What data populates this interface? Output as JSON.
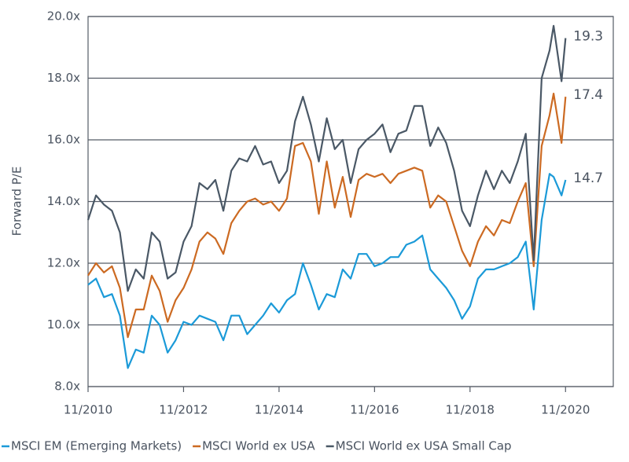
{
  "chart_data": {
    "type": "line",
    "y_label": "Forward P/E",
    "x": [
      "2010-11",
      "2011-01",
      "2011-03",
      "2011-05",
      "2011-07",
      "2011-09",
      "2011-11",
      "2012-01",
      "2012-03",
      "2012-05",
      "2012-07",
      "2012-09",
      "2012-11",
      "2013-01",
      "2013-03",
      "2013-05",
      "2013-07",
      "2013-09",
      "2013-11",
      "2014-01",
      "2014-03",
      "2014-05",
      "2014-07",
      "2014-09",
      "2014-11",
      "2015-01",
      "2015-03",
      "2015-05",
      "2015-07",
      "2015-09",
      "2015-11",
      "2016-01",
      "2016-03",
      "2016-05",
      "2016-07",
      "2016-09",
      "2016-11",
      "2017-01",
      "2017-03",
      "2017-05",
      "2017-07",
      "2017-09",
      "2017-11",
      "2018-01",
      "2018-03",
      "2018-05",
      "2018-07",
      "2018-09",
      "2018-11",
      "2019-01",
      "2019-03",
      "2019-05",
      "2019-07",
      "2019-09",
      "2019-11",
      "2020-01",
      "2020-03",
      "2020-05",
      "2020-07",
      "2020-08",
      "2020-10",
      "2020-11"
    ],
    "series": [
      {
        "name": "MSCI EM (Emerging Markets)",
        "color": "#1b9ad8",
        "values": [
          11.3,
          11.5,
          10.9,
          11.0,
          10.3,
          8.6,
          9.2,
          9.1,
          10.3,
          10.0,
          9.1,
          9.5,
          10.1,
          10.0,
          10.3,
          10.2,
          10.1,
          9.5,
          10.3,
          10.3,
          9.7,
          10.0,
          10.3,
          10.7,
          10.4,
          10.8,
          11.0,
          12.0,
          11.3,
          10.5,
          11.0,
          10.9,
          11.8,
          11.5,
          12.3,
          12.3,
          11.9,
          12.0,
          12.2,
          12.2,
          12.6,
          12.7,
          12.9,
          11.8,
          11.5,
          11.2,
          10.8,
          10.2,
          10.6,
          11.5,
          11.8,
          11.8,
          11.9,
          12.0,
          12.2,
          12.7,
          10.5,
          13.4,
          14.9,
          14.8,
          14.2,
          14.7
        ],
        "value_labels": [
          null,
          null,
          null,
          null,
          null,
          null,
          null,
          null,
          null,
          null,
          null,
          null,
          null,
          null,
          null,
          null,
          null,
          null,
          null,
          null,
          null,
          null,
          null,
          null,
          null,
          null,
          null,
          null,
          null,
          null,
          null,
          null,
          null,
          null,
          null,
          null,
          null,
          null,
          null,
          null,
          null,
          null,
          null,
          null,
          null,
          null,
          null,
          null,
          null,
          null,
          null,
          null,
          null,
          null,
          null,
          null,
          null,
          null,
          null,
          null,
          null,
          "14.7"
        ]
      },
      {
        "name": "MSCI World ex USA",
        "color": "#cc6a22",
        "values": [
          11.6,
          12.0,
          11.7,
          11.9,
          11.2,
          9.6,
          10.5,
          10.5,
          11.6,
          11.1,
          10.1,
          10.8,
          11.2,
          11.8,
          12.7,
          13.0,
          12.8,
          12.3,
          13.3,
          13.7,
          14.0,
          14.1,
          13.9,
          14.0,
          13.7,
          14.1,
          15.8,
          15.9,
          15.3,
          13.6,
          15.3,
          13.8,
          14.8,
          13.5,
          14.7,
          14.9,
          14.8,
          14.9,
          14.6,
          14.9,
          15.0,
          15.1,
          15.0,
          13.8,
          14.2,
          14.0,
          13.2,
          12.4,
          11.9,
          12.7,
          13.2,
          12.9,
          13.4,
          13.3,
          14.0,
          14.6,
          11.9,
          15.8,
          16.8,
          17.5,
          15.9,
          17.4
        ],
        "value_labels": [
          null,
          null,
          null,
          null,
          null,
          null,
          null,
          null,
          null,
          null,
          null,
          null,
          null,
          null,
          null,
          null,
          null,
          null,
          null,
          null,
          null,
          null,
          null,
          null,
          null,
          null,
          null,
          null,
          null,
          null,
          null,
          null,
          null,
          null,
          null,
          null,
          null,
          null,
          null,
          null,
          null,
          null,
          null,
          null,
          null,
          null,
          null,
          null,
          null,
          null,
          null,
          null,
          null,
          null,
          null,
          null,
          null,
          null,
          null,
          null,
          null,
          "17.4"
        ]
      },
      {
        "name": "MSCI World ex USA Small Cap",
        "color": "#4a5866",
        "values": [
          13.4,
          14.2,
          13.9,
          13.7,
          13.0,
          11.1,
          11.8,
          11.5,
          13.0,
          12.7,
          11.5,
          11.7,
          12.7,
          13.2,
          14.6,
          14.4,
          14.7,
          13.7,
          15.0,
          15.4,
          15.3,
          15.8,
          15.2,
          15.3,
          14.6,
          15.0,
          16.6,
          17.4,
          16.5,
          15.3,
          16.7,
          15.7,
          16.0,
          14.6,
          15.7,
          16.0,
          16.2,
          16.5,
          15.6,
          16.2,
          16.3,
          17.1,
          17.1,
          15.8,
          16.4,
          15.9,
          15.0,
          13.7,
          13.2,
          14.2,
          15.0,
          14.4,
          15.0,
          14.6,
          15.3,
          16.2,
          12.1,
          18.0,
          18.9,
          19.7,
          17.9,
          19.3
        ],
        "value_labels": [
          null,
          null,
          null,
          null,
          null,
          null,
          null,
          null,
          null,
          null,
          null,
          null,
          null,
          null,
          null,
          null,
          null,
          null,
          null,
          null,
          null,
          null,
          null,
          null,
          null,
          null,
          null,
          null,
          null,
          null,
          null,
          null,
          null,
          null,
          null,
          null,
          null,
          null,
          null,
          null,
          null,
          null,
          null,
          null,
          null,
          null,
          null,
          null,
          null,
          null,
          null,
          null,
          null,
          null,
          null,
          null,
          null,
          null,
          null,
          null,
          null,
          "19.3"
        ]
      }
    ],
    "xlim": [
      "2010-11",
      "2021-11"
    ],
    "xticks": [
      {
        "value": "2010-11",
        "label": "11/2010"
      },
      {
        "value": "2012-11",
        "label": "11/2012"
      },
      {
        "value": "2014-11",
        "label": "11/2014"
      },
      {
        "value": "2016-11",
        "label": "11/2016"
      },
      {
        "value": "2018-11",
        "label": "11/2018"
      },
      {
        "value": "2020-11",
        "label": "11/2020"
      }
    ],
    "ylim": [
      8,
      20
    ],
    "yticks": [
      {
        "value": 8,
        "label": "8.0x"
      },
      {
        "value": 10,
        "label": "10.0x"
      },
      {
        "value": 12,
        "label": "12.0x"
      },
      {
        "value": 14,
        "label": "14.0x"
      },
      {
        "value": 16,
        "label": "16.0x"
      },
      {
        "value": 18,
        "label": "18.0x"
      },
      {
        "value": 20,
        "label": "20.0x"
      }
    ],
    "grid": true,
    "legend": "bottom"
  }
}
